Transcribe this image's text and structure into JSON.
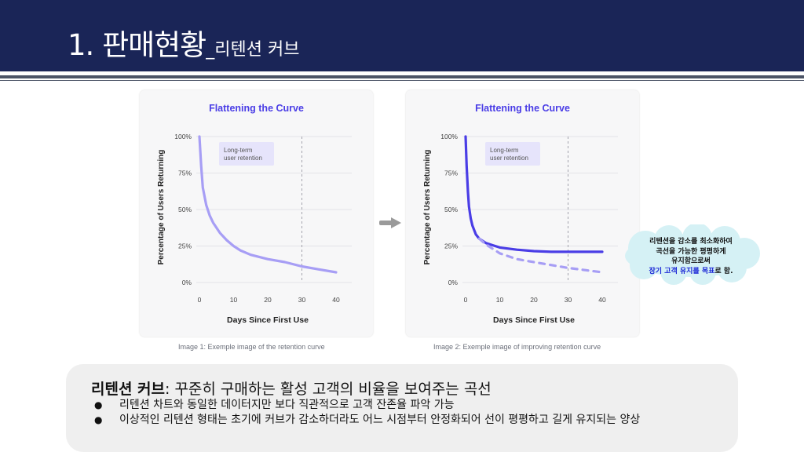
{
  "header": {
    "title": "1. 판매현황",
    "subtitle": "_리텐션 커브"
  },
  "colors": {
    "header_bg": "#1a2557",
    "curve_light": "#a79ef5",
    "curve_dark": "#4a3de6",
    "curve_dashed": "#a79ef5",
    "annotation_bg": "#e6e4fb",
    "cloud_fill": "#d5f1f5",
    "highlight_text": "#1a26d6"
  },
  "arrow_icon": "right-arrow-icon",
  "chart_data": [
    {
      "type": "line",
      "title": "Flattening the Curve",
      "xlabel": "Days Since First Use",
      "ylabel": "Percentage of Users Returning",
      "x_ticks": [
        "0",
        "10",
        "20",
        "30",
        "40"
      ],
      "y_ticks": [
        "0%",
        "25%",
        "50%",
        "75%",
        "100%"
      ],
      "xlim": [
        0,
        40
      ],
      "ylim": [
        0,
        100
      ],
      "annotation": [
        "Long-term",
        "user retention"
      ],
      "vertical_dashed_line_x": 30,
      "series": [
        {
          "style": "solid",
          "color": "#a79ef5",
          "x": [
            0,
            0.5,
            1,
            2,
            3,
            4,
            6,
            8,
            10,
            12,
            15,
            20,
            25,
            30,
            35,
            40
          ],
          "y": [
            100,
            80,
            65,
            53,
            46,
            41,
            34,
            29,
            25,
            22,
            19,
            16,
            14,
            11,
            9,
            7
          ]
        }
      ],
      "caption": "Image 1: Exemple image of the retention curve"
    },
    {
      "type": "line",
      "title": "Flattening the Curve",
      "xlabel": "Days Since First Use",
      "ylabel": "Percentage of Users Returning",
      "x_ticks": [
        "0",
        "10",
        "20",
        "30",
        "40"
      ],
      "y_ticks": [
        "0%",
        "25%",
        "50%",
        "75%",
        "100%"
      ],
      "xlim": [
        0,
        40
      ],
      "ylim": [
        0,
        100
      ],
      "annotation": [
        "Long-term",
        "user retention"
      ],
      "vertical_dashed_line_x": 30,
      "series": [
        {
          "style": "solid",
          "color": "#4a3de6",
          "x": [
            0,
            0.3,
            0.7,
            1,
            1.5,
            2,
            3,
            4,
            6,
            8,
            10,
            15,
            20,
            25,
            30,
            35,
            40
          ],
          "y": [
            100,
            80,
            62,
            52,
            44,
            39,
            33,
            30,
            27,
            25.5,
            24,
            22.5,
            21.5,
            21,
            21,
            21,
            21
          ]
        },
        {
          "style": "dashed",
          "color": "#a79ef5",
          "x": [
            4,
            6,
            8,
            10,
            15,
            20,
            25,
            30,
            35,
            40
          ],
          "y": [
            30,
            26,
            23,
            20,
            16,
            14,
            12,
            10,
            8.5,
            7
          ]
        }
      ],
      "caption": "Image 2: Exemple image of improving retention curve"
    }
  ],
  "cloud_note": {
    "lines": [
      "리텐션을 감소를 최소화하여",
      "곡선을 가능한 평평하게",
      "유지함으로써"
    ],
    "last_line_highlight": "장기 고객 유지를 목표",
    "last_line_rest": "로 함."
  },
  "summary": {
    "heading_bold": "리텐션 커브",
    "heading_rest": ": 꾸준히 구매하는 활성 고객의 비율을 보여주는 곡선",
    "bullets": [
      "리텐션 차트와 동일한 데이터지만 보다 직관적으로 고객 잔존율 파악 가능",
      "이상적인 리텐션 형태는 초기에 커브가 감소하더라도 어느 시점부터 안정화되어 선이 평평하고 길게 유지되는 양상"
    ]
  }
}
